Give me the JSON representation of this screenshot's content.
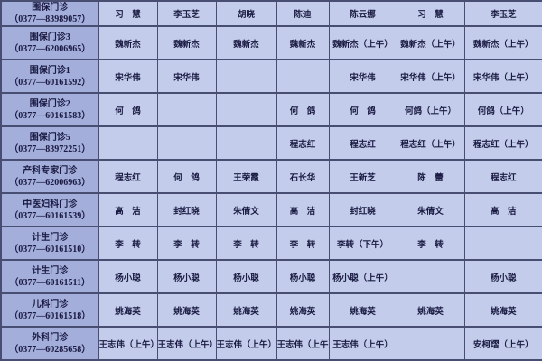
{
  "theme": {
    "dept_bg": "#a3aeda",
    "cell_bg": "#c3cdeb",
    "border": "#474e71",
    "text": "#1a1a42"
  },
  "table": {
    "rows": [
      {
        "dept": "围保门诊",
        "phone": "（0377—83989057）",
        "cells": [
          "习　慧",
          "李玉芝",
          "胡晓",
          "陈迪",
          "陈云娜",
          "习　慧",
          "李玉芝"
        ]
      },
      {
        "dept": "围保门诊3",
        "phone": "（0377—62006965）",
        "cells": [
          "魏新杰",
          "魏新杰",
          "魏新杰",
          "魏新杰",
          "魏新杰（上午）",
          "魏新杰（上午）",
          "魏新杰（上午）"
        ]
      },
      {
        "dept": "围保门诊1",
        "phone": "（0377—60161592）",
        "cells": [
          "宋华伟",
          "宋华伟",
          "",
          "",
          "宋华伟",
          "宋华伟（上午）",
          "宋华伟（上午）"
        ]
      },
      {
        "dept": "围保门诊2",
        "phone": "（0377—60161583）",
        "cells": [
          "何　鸽",
          "",
          "",
          "何　鸽",
          "何　鸽",
          "何鸽（上午）",
          "何鸽（上午）"
        ]
      },
      {
        "dept": "围保门诊5",
        "phone": "（0377—83972251）",
        "cells": [
          "",
          "",
          "",
          "程志红",
          "程志红",
          "程志红（上午）",
          "程志红（上午）"
        ]
      },
      {
        "dept": "产科专家门诊",
        "phone": "（0377—62006963）",
        "cells": [
          "程志红",
          "何　鸽",
          "王荣霞",
          "石长华",
          "王新芝",
          "陈　蕾",
          "程志红"
        ]
      },
      {
        "dept": "中医妇科门诊",
        "phone": "（0377—60161539）",
        "cells": [
          "高　洁",
          "封红晓",
          "朱倩文",
          "高　洁",
          "封红晓",
          "朱倩文",
          "高　洁"
        ]
      },
      {
        "dept": "计生门诊",
        "phone": "（0377—60161510）",
        "cells": [
          "李　转",
          "李　转",
          "李　转",
          "李　转",
          "李转（下午）",
          "李　转",
          ""
        ]
      },
      {
        "dept": "计生门诊",
        "phone": "（0377—60161511）",
        "cells": [
          "杨小聪",
          "杨小聪",
          "杨小聪",
          "杨小聪",
          "杨小聪（上午）",
          "",
          "杨小聪"
        ]
      },
      {
        "dept": "儿科门诊",
        "phone": "（0377—60161518）",
        "cells": [
          "姚海英",
          "姚海英",
          "姚海英",
          "姚海英",
          "姚海英",
          "姚海英",
          "姚海英"
        ]
      },
      {
        "dept": "外科门诊",
        "phone": "（0377—60285658）",
        "cells": [
          "王志伟（上午）",
          "王志伟（上午）",
          "王志伟（上午）",
          "王志伟（上午）",
          "王志伟（上午）",
          "",
          "安柯熠（上午）"
        ]
      }
    ]
  }
}
